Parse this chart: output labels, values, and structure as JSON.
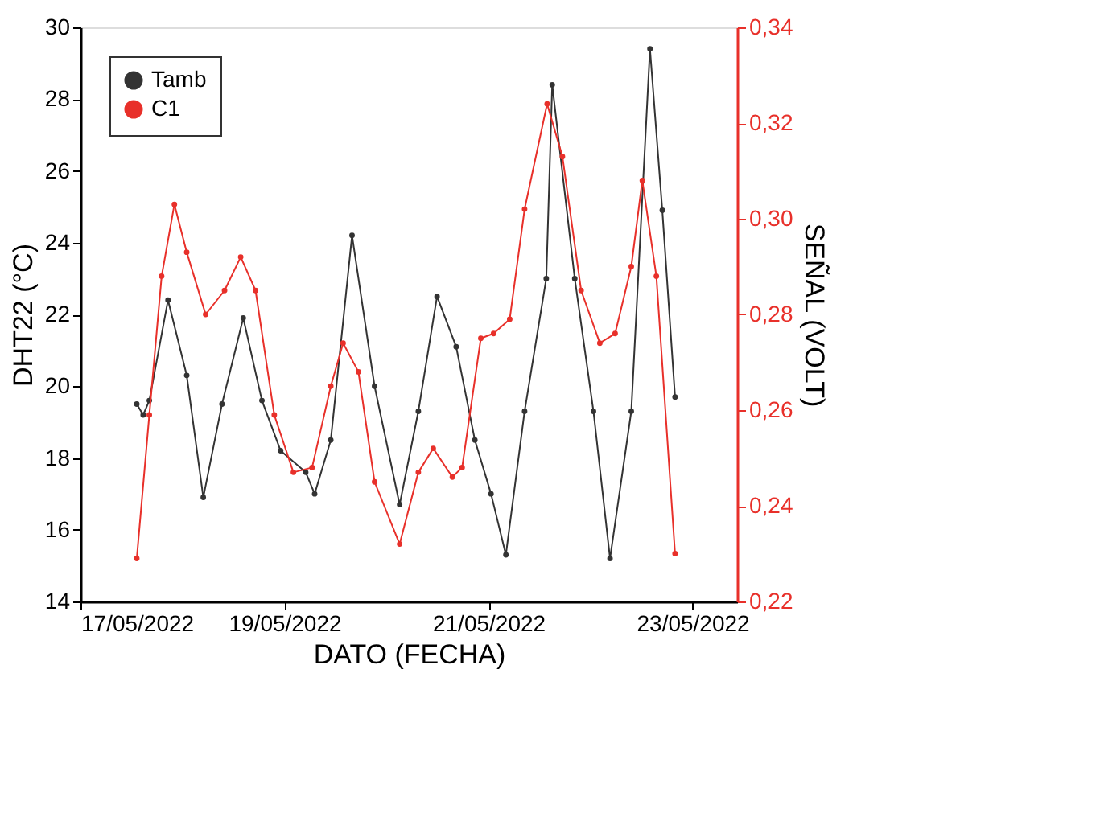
{
  "chart_data": {
    "type": "line",
    "xlabel": "DATO (FECHA)",
    "ylabel": "DHT22 (°C)",
    "y2label": "SEÑAL (VOLT)",
    "xlim": [
      "2022-05-17T00:00",
      "2022-05-23T10:30"
    ],
    "xticks": [
      {
        "value": "2022-05-17T00:00",
        "label": "17/05/2022"
      },
      {
        "value": "2022-05-19T00:00",
        "label": "19/05/2022"
      },
      {
        "value": "2022-05-21T00:00",
        "label": "21/05/2022"
      },
      {
        "value": "2022-05-23T00:00",
        "label": "23/05/2022"
      }
    ],
    "ylim": [
      14,
      30
    ],
    "yticks": [
      14,
      16,
      18,
      20,
      22,
      24,
      26,
      28,
      30
    ],
    "y2lim": [
      0.22,
      0.34
    ],
    "y2ticks": [
      {
        "value": 0.22,
        "label": "0,22"
      },
      {
        "value": 0.24,
        "label": "0,24"
      },
      {
        "value": 0.26,
        "label": "0,26"
      },
      {
        "value": 0.28,
        "label": "0,28"
      },
      {
        "value": 0.3,
        "label": "0,30"
      },
      {
        "value": 0.32,
        "label": "0,32"
      },
      {
        "value": 0.34,
        "label": "0,34"
      }
    ],
    "grid": false,
    "legend": "top left",
    "marker": "circle",
    "line_style": "solid",
    "series": [
      {
        "name": "Tamb",
        "color": "#333333",
        "x": [
          "2022-05-17T13:15",
          "2022-05-17T14:45",
          "2022-05-17T16:12",
          "2022-05-17T20:36",
          "2022-05-18T01:00",
          "2022-05-18T04:54",
          "2022-05-18T09:18",
          "2022-05-18T14:18",
          "2022-05-18T18:42",
          "2022-05-18T23:06",
          "2022-05-19T05:00",
          "2022-05-19T07:06",
          "2022-05-19T10:54",
          "2022-05-19T15:54",
          "2022-05-19T21:12",
          "2022-05-20T03:06",
          "2022-05-20T07:30",
          "2022-05-20T11:54",
          "2022-05-20T16:24",
          "2022-05-20T20:48",
          "2022-05-21T00:36",
          "2022-05-21T04:06",
          "2022-05-21T08:30",
          "2022-05-21T13:36",
          "2022-05-21T15:00",
          "2022-05-21T20:18",
          "2022-05-22T00:42",
          "2022-05-22T04:36",
          "2022-05-22T09:36",
          "2022-05-22T14:00",
          "2022-05-22T16:54",
          "2022-05-22T19:54"
        ],
        "values": [
          19.5,
          19.2,
          19.6,
          22.4,
          20.3,
          16.9,
          19.5,
          21.9,
          19.6,
          18.2,
          17.6,
          17.0,
          18.5,
          24.2,
          20.0,
          16.7,
          19.3,
          22.5,
          21.1,
          18.5,
          17.0,
          15.3,
          19.3,
          23.0,
          28.4,
          23.0,
          19.3,
          15.2,
          19.3,
          29.4,
          24.9,
          19.7
        ]
      },
      {
        "name": "C1",
        "color": "#e8302a",
        "axis": "y2",
        "x": [
          "2022-05-17T13:15",
          "2022-05-17T16:12",
          "2022-05-17T19:06",
          "2022-05-17T22:06",
          "2022-05-18T01:00",
          "2022-05-18T05:27",
          "2022-05-18T09:54",
          "2022-05-18T13:42",
          "2022-05-18T17:12",
          "2022-05-18T21:36",
          "2022-05-19T02:06",
          "2022-05-19T06:30",
          "2022-05-19T10:54",
          "2022-05-19T13:48",
          "2022-05-19T17:24",
          "2022-05-19T21:12",
          "2022-05-20T03:06",
          "2022-05-20T07:30",
          "2022-05-20T11:00",
          "2022-05-20T15:30",
          "2022-05-20T17:48",
          "2022-05-20T22:12",
          "2022-05-21T01:12",
          "2022-05-21T05:00",
          "2022-05-21T08:30",
          "2022-05-21T13:48",
          "2022-05-21T17:24",
          "2022-05-21T21:48",
          "2022-05-22T02:12",
          "2022-05-22T05:48",
          "2022-05-22T09:36",
          "2022-05-22T12:12",
          "2022-05-22T15:30",
          "2022-05-22T19:54"
        ],
        "values": [
          0.229,
          0.259,
          0.288,
          0.303,
          0.293,
          0.28,
          0.285,
          0.292,
          0.285,
          0.259,
          0.247,
          0.248,
          0.265,
          0.274,
          0.268,
          0.245,
          0.232,
          0.247,
          0.252,
          0.246,
          0.248,
          0.275,
          0.276,
          0.279,
          0.302,
          0.324,
          0.313,
          0.285,
          0.274,
          0.276,
          0.29,
          0.308,
          0.288,
          0.23
        ]
      }
    ]
  }
}
